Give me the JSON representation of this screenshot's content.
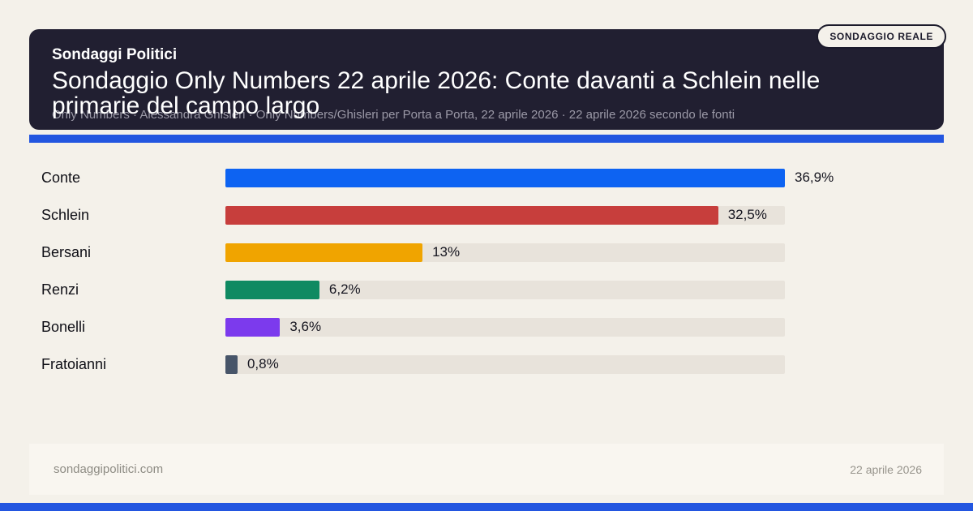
{
  "badge": "SONDAGGIO REALE",
  "header": {
    "kicker": "Sondaggi Politici",
    "title": "Sondaggio Only Numbers 22 aprile 2026: Conte davanti a Schlein nelle primarie del campo largo",
    "subtitle": "Only Numbers · Alessandra Ghisleri · Only Numbers/Ghisleri per Porta a Porta, 22 aprile 2026 · 22 aprile 2026 secondo le fonti"
  },
  "chart_data": {
    "type": "bar",
    "orientation": "horizontal",
    "title": "Sondaggio Only Numbers 22 aprile 2026: Conte davanti a Schlein nelle primarie del campo largo",
    "categories": [
      "Conte",
      "Schlein",
      "Bersani",
      "Renzi",
      "Bonelli",
      "Fratoianni"
    ],
    "values": [
      36.9,
      32.5,
      13,
      6.2,
      3.6,
      0.8
    ],
    "value_labels": [
      "36,9%",
      "32,5%",
      "13%",
      "6,2%",
      "3,6%",
      "0,8%"
    ],
    "bar_colors": [
      "#0d63f2",
      "#c73e3c",
      "#f0a400",
      "#0f8a62",
      "#7c3aed",
      "#475569"
    ],
    "track_color": "#e8e3db",
    "xlim": [
      0,
      36.9
    ],
    "grid": false,
    "legend": false
  },
  "footer": {
    "site": "sondaggipolitici.com",
    "date": "22 aprile 2026"
  },
  "colors": {
    "page_bg": "#f4f1ea",
    "header_bg": "#211f31",
    "accent": "#2356e0"
  }
}
